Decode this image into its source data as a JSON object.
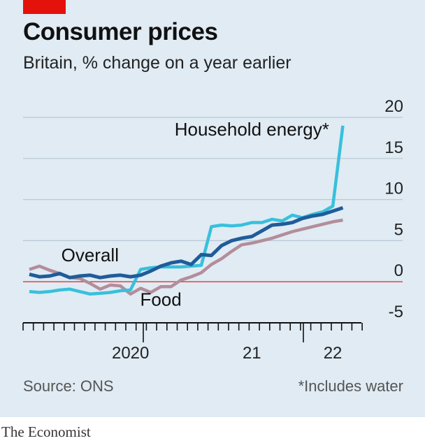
{
  "header": {
    "title": "Consumer prices",
    "subtitle": "Britain, % change on a year earlier"
  },
  "footer": {
    "source": "Source: ONS",
    "footnote": "*Includes water",
    "brand": "The Economist"
  },
  "colors": {
    "background": "#e0ebf3",
    "accent": "#e3120b",
    "overall": "#1f5c99",
    "energy": "#38c0dc",
    "food": "#b38d9b",
    "grid": "#b8c8d6",
    "zero": "#db444b"
  },
  "chart_data": {
    "type": "line",
    "title": "Consumer prices",
    "subtitle": "Britain, % change on a year earlier",
    "ylim": [
      -5,
      20
    ],
    "yticks": [
      {
        "value": 20,
        "label": "20"
      },
      {
        "value": 15,
        "label": "15"
      },
      {
        "value": 10,
        "label": "10"
      },
      {
        "value": 5,
        "label": "5"
      },
      {
        "value": 0,
        "label": "0"
      },
      {
        "value": -5,
        "label": "-5"
      }
    ],
    "x_start": "2019-09",
    "x_end": "2022-05",
    "xticks": [
      {
        "label": "2020",
        "x": "2020-07"
      },
      {
        "label": "21",
        "x": "2021-07"
      },
      {
        "label": "22",
        "x": "2022-03"
      }
    ],
    "grid": true,
    "series": [
      {
        "name": "Overall",
        "color_key": "overall",
        "label_at": "2020-03",
        "label_value": 2.5,
        "x": [
          "2019-09",
          "2019-10",
          "2019-11",
          "2019-12",
          "2020-01",
          "2020-02",
          "2020-03",
          "2020-04",
          "2020-05",
          "2020-06",
          "2020-07",
          "2020-08",
          "2020-09",
          "2020-10",
          "2020-11",
          "2020-12",
          "2021-01",
          "2021-02",
          "2021-03",
          "2021-04",
          "2021-05",
          "2021-06",
          "2021-07",
          "2021-08",
          "2021-09",
          "2021-10",
          "2021-11",
          "2021-12",
          "2022-01",
          "2022-02",
          "2022-03",
          "2022-04"
        ],
        "values": [
          0.9,
          0.6,
          0.7,
          1.0,
          0.5,
          0.7,
          0.8,
          0.5,
          0.7,
          0.8,
          0.6,
          0.8,
          1.3,
          1.9,
          2.3,
          2.5,
          2.1,
          3.3,
          3.2,
          4.4,
          5.0,
          5.3,
          5.5,
          6.2,
          6.9,
          7.0,
          7.2,
          7.7,
          8.0,
          8.2,
          8.6,
          9.0
        ],
        "values_note": ""
      },
      {
        "name": "Household energy*",
        "color_key": "energy",
        "label_at": "2021-07",
        "label_value": 17.8,
        "x": [
          "2019-09",
          "2019-10",
          "2019-11",
          "2019-12",
          "2020-01",
          "2020-02",
          "2020-03",
          "2020-04",
          "2020-05",
          "2020-06",
          "2020-07",
          "2020-08",
          "2020-09",
          "2020-10",
          "2020-11",
          "2020-12",
          "2021-01",
          "2021-02",
          "2021-03",
          "2021-04",
          "2021-05",
          "2021-06",
          "2021-07",
          "2021-08",
          "2021-09",
          "2021-10",
          "2021-11",
          "2021-12",
          "2022-01",
          "2022-02",
          "2022-03",
          "2022-04"
        ],
        "values": [
          -1.2,
          -1.3,
          -1.2,
          -1.0,
          -0.9,
          -1.2,
          -1.5,
          -1.4,
          -1.3,
          -1.1,
          -1.0,
          1.5,
          1.7,
          1.8,
          1.8,
          1.8,
          1.9,
          2.0,
          6.7,
          6.9,
          6.8,
          6.9,
          7.2,
          7.2,
          7.6,
          7.4,
          8.1,
          7.8,
          8.2,
          8.5,
          9.2,
          19.0
        ]
      },
      {
        "name": "Food",
        "color_key": "food",
        "label_at": "2020-10",
        "label_value": -2.9,
        "x": [
          "2019-09",
          "2019-10",
          "2019-11",
          "2019-12",
          "2020-01",
          "2020-02",
          "2020-03",
          "2020-04",
          "2020-05",
          "2020-06",
          "2020-07",
          "2020-08",
          "2020-09",
          "2020-10",
          "2020-11",
          "2020-12",
          "2021-01",
          "2021-02",
          "2021-03",
          "2021-04",
          "2021-05",
          "2021-06",
          "2021-07",
          "2021-08",
          "2021-09",
          "2021-10",
          "2021-11",
          "2021-12",
          "2022-01",
          "2022-02",
          "2022-03",
          "2022-04"
        ],
        "values": [
          1.5,
          1.9,
          1.4,
          1.0,
          0.5,
          0.4,
          -0.2,
          -0.9,
          -0.4,
          -0.5,
          -1.5,
          -0.8,
          -1.3,
          -0.6,
          -0.6,
          0.2,
          0.6,
          1.1,
          2.1,
          2.8,
          3.7,
          4.5,
          4.7,
          5.0,
          5.3,
          5.7,
          6.1,
          6.4,
          6.7,
          7.0,
          7.3,
          7.5
        ]
      }
    ]
  }
}
